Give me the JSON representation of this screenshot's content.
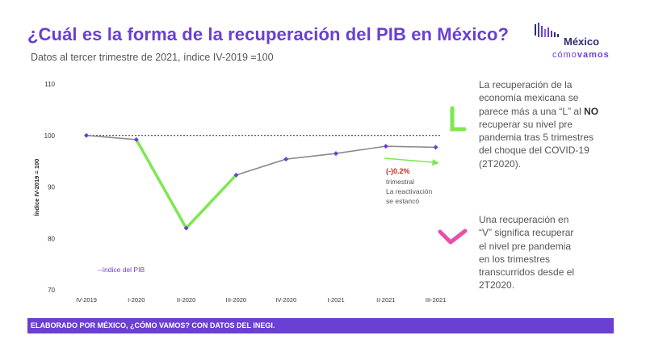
{
  "header": {
    "title": "¿Cuál es la forma de la recuperación del PIB en México?",
    "subtitle": "Datos al tercer trimestre de 2021, índice IV-2019 =100"
  },
  "logo": {
    "top": "México",
    "bottom_light": "cómo",
    "bottom_bold": "vamos"
  },
  "chart_data": {
    "type": "line",
    "categories": [
      "IV-2019",
      "I-2020",
      "II-2020",
      "III-2020",
      "IV-2020",
      "I-2021",
      "II-2021",
      "III-2021"
    ],
    "series": [
      {
        "name": "índice del PIB",
        "values": [
          100,
          99.2,
          82,
          92.3,
          95.4,
          96.5,
          97.9,
          97.7
        ]
      }
    ],
    "reference_line": 100,
    "ylabel": "Índice IV-2019 = 100",
    "yticks": [
      70,
      80,
      90,
      100,
      110
    ],
    "ylim": [
      70,
      110
    ],
    "legend_label": "--índice del PIB",
    "annotation": {
      "value": "(-)0.2%",
      "line2": "trimestral",
      "line3": "La reactivación",
      "line4": "se estancó"
    },
    "colors": {
      "line": "#8a8a8a",
      "highlight": "#7ee84f",
      "point": "#6a3fd3",
      "legend": "#6a3fd3",
      "annot_red": "#e02020",
      "annot_arrow": "#7ee84f",
      "mark_l": "#7ee84f",
      "mark_v": "#e84fa6"
    }
  },
  "side_text": {
    "para1_a": "La recuperación de la economía mexicana se parece más a una “L” al ",
    "para1_b": "NO",
    "para1_c": " recuperar su nivel pre pandemia tras 5 trimestres del choque del COVID-19 (2T2020).",
    "para2": "Una recuperación en “V” significa recuperar el nivel pre pandemia en los trimestres transcurridos desde el 2T2020."
  },
  "footer": {
    "text": "ELABORADO POR MÉXICO, ¿CÓMO VAMOS? CON DATOS DEL INEGI."
  }
}
